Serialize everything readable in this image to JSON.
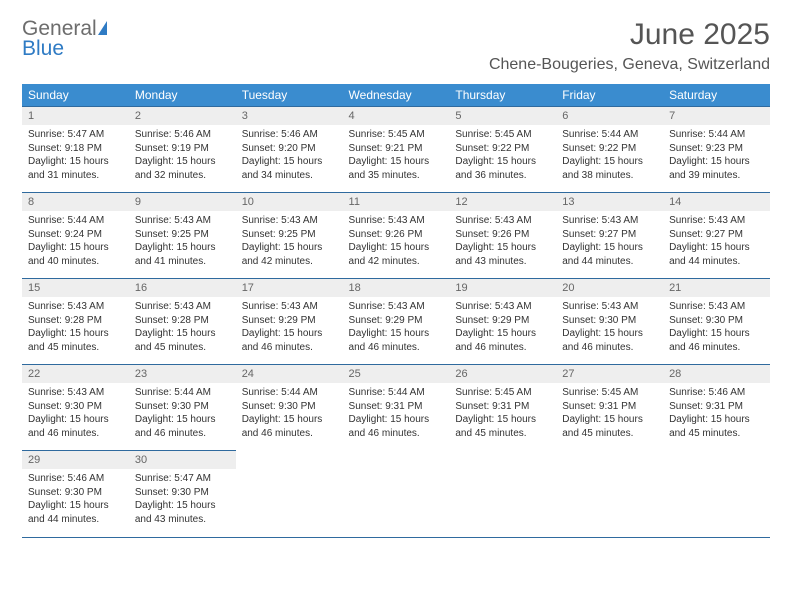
{
  "logo": {
    "line1": "General",
    "line2": "Blue"
  },
  "title": "June 2025",
  "location": "Chene-Bougeries, Geneva, Switzerland",
  "weekday_header_bg": "#3a8ccf",
  "weekday_header_fg": "#ffffff",
  "daynum_bg": "#eeeeee",
  "row_border_color": "#2f6a9e",
  "weekdays": [
    "Sunday",
    "Monday",
    "Tuesday",
    "Wednesday",
    "Thursday",
    "Friday",
    "Saturday"
  ],
  "days": [
    {
      "n": "1",
      "sunrise": "5:47 AM",
      "sunset": "9:18 PM",
      "daylight": "15 hours and 31 minutes."
    },
    {
      "n": "2",
      "sunrise": "5:46 AM",
      "sunset": "9:19 PM",
      "daylight": "15 hours and 32 minutes."
    },
    {
      "n": "3",
      "sunrise": "5:46 AM",
      "sunset": "9:20 PM",
      "daylight": "15 hours and 34 minutes."
    },
    {
      "n": "4",
      "sunrise": "5:45 AM",
      "sunset": "9:21 PM",
      "daylight": "15 hours and 35 minutes."
    },
    {
      "n": "5",
      "sunrise": "5:45 AM",
      "sunset": "9:22 PM",
      "daylight": "15 hours and 36 minutes."
    },
    {
      "n": "6",
      "sunrise": "5:44 AM",
      "sunset": "9:22 PM",
      "daylight": "15 hours and 38 minutes."
    },
    {
      "n": "7",
      "sunrise": "5:44 AM",
      "sunset": "9:23 PM",
      "daylight": "15 hours and 39 minutes."
    },
    {
      "n": "8",
      "sunrise": "5:44 AM",
      "sunset": "9:24 PM",
      "daylight": "15 hours and 40 minutes."
    },
    {
      "n": "9",
      "sunrise": "5:43 AM",
      "sunset": "9:25 PM",
      "daylight": "15 hours and 41 minutes."
    },
    {
      "n": "10",
      "sunrise": "5:43 AM",
      "sunset": "9:25 PM",
      "daylight": "15 hours and 42 minutes."
    },
    {
      "n": "11",
      "sunrise": "5:43 AM",
      "sunset": "9:26 PM",
      "daylight": "15 hours and 42 minutes."
    },
    {
      "n": "12",
      "sunrise": "5:43 AM",
      "sunset": "9:26 PM",
      "daylight": "15 hours and 43 minutes."
    },
    {
      "n": "13",
      "sunrise": "5:43 AM",
      "sunset": "9:27 PM",
      "daylight": "15 hours and 44 minutes."
    },
    {
      "n": "14",
      "sunrise": "5:43 AM",
      "sunset": "9:27 PM",
      "daylight": "15 hours and 44 minutes."
    },
    {
      "n": "15",
      "sunrise": "5:43 AM",
      "sunset": "9:28 PM",
      "daylight": "15 hours and 45 minutes."
    },
    {
      "n": "16",
      "sunrise": "5:43 AM",
      "sunset": "9:28 PM",
      "daylight": "15 hours and 45 minutes."
    },
    {
      "n": "17",
      "sunrise": "5:43 AM",
      "sunset": "9:29 PM",
      "daylight": "15 hours and 46 minutes."
    },
    {
      "n": "18",
      "sunrise": "5:43 AM",
      "sunset": "9:29 PM",
      "daylight": "15 hours and 46 minutes."
    },
    {
      "n": "19",
      "sunrise": "5:43 AM",
      "sunset": "9:29 PM",
      "daylight": "15 hours and 46 minutes."
    },
    {
      "n": "20",
      "sunrise": "5:43 AM",
      "sunset": "9:30 PM",
      "daylight": "15 hours and 46 minutes."
    },
    {
      "n": "21",
      "sunrise": "5:43 AM",
      "sunset": "9:30 PM",
      "daylight": "15 hours and 46 minutes."
    },
    {
      "n": "22",
      "sunrise": "5:43 AM",
      "sunset": "9:30 PM",
      "daylight": "15 hours and 46 minutes."
    },
    {
      "n": "23",
      "sunrise": "5:44 AM",
      "sunset": "9:30 PM",
      "daylight": "15 hours and 46 minutes."
    },
    {
      "n": "24",
      "sunrise": "5:44 AM",
      "sunset": "9:30 PM",
      "daylight": "15 hours and 46 minutes."
    },
    {
      "n": "25",
      "sunrise": "5:44 AM",
      "sunset": "9:31 PM",
      "daylight": "15 hours and 46 minutes."
    },
    {
      "n": "26",
      "sunrise": "5:45 AM",
      "sunset": "9:31 PM",
      "daylight": "15 hours and 45 minutes."
    },
    {
      "n": "27",
      "sunrise": "5:45 AM",
      "sunset": "9:31 PM",
      "daylight": "15 hours and 45 minutes."
    },
    {
      "n": "28",
      "sunrise": "5:46 AM",
      "sunset": "9:31 PM",
      "daylight": "15 hours and 45 minutes."
    },
    {
      "n": "29",
      "sunrise": "5:46 AM",
      "sunset": "9:30 PM",
      "daylight": "15 hours and 44 minutes."
    },
    {
      "n": "30",
      "sunrise": "5:47 AM",
      "sunset": "9:30 PM",
      "daylight": "15 hours and 43 minutes."
    }
  ],
  "labels": {
    "sunrise_prefix": "Sunrise: ",
    "sunset_prefix": "Sunset: ",
    "daylight_prefix": "Daylight: "
  }
}
